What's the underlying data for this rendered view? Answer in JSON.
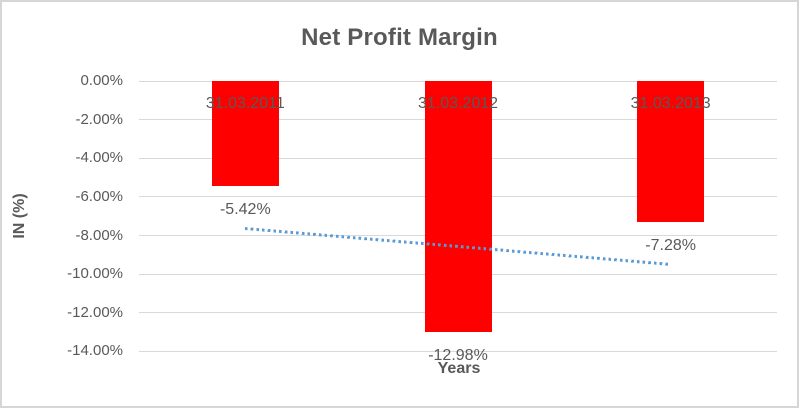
{
  "chart_data": {
    "type": "bar",
    "title": "Net Profit Margin",
    "categories": [
      "31.03.2011",
      "31.03.2012",
      "31.03.2013"
    ],
    "values": [
      -5.42,
      -12.98,
      -7.28
    ],
    "data_labels": [
      "-5.42%",
      "-12.98%",
      "-7.28%"
    ],
    "xlabel": "Years",
    "ylabel": "IN (%)",
    "ylim": [
      -14,
      0
    ],
    "ytick_step": 2,
    "yticks": [
      "0.00%",
      "-2.00%",
      "-4.00%",
      "-6.00%",
      "-8.00%",
      "-10.00%",
      "-12.00%",
      "-14.00%"
    ],
    "grid": true,
    "legend": "none",
    "colors": {
      "bar": "#FF0000",
      "trendline": "#5B9BD5",
      "text": "#595959",
      "gridline": "#D9D9D9",
      "border": "#D6D6D6",
      "background": "#FFFFFF"
    },
    "trendline": {
      "type": "linear",
      "line_style": "dotted",
      "start_value": -7.63,
      "end_value": -9.49
    }
  }
}
